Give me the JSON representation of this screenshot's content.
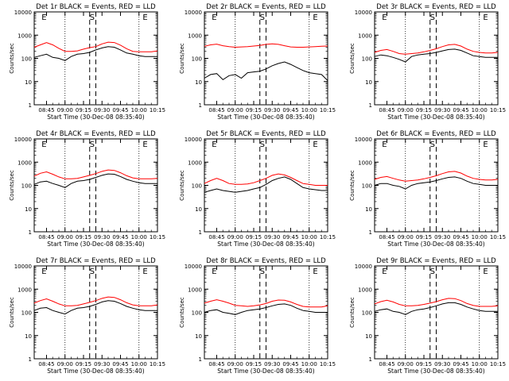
{
  "figure": {
    "xlabel": "Start Time (30-Dec-08 08:35:40)",
    "ylabel": "Counts/sec",
    "xticks": [
      "08:45",
      "09:00",
      "09:15",
      "09:30",
      "09:45",
      "10:00",
      "10:15"
    ],
    "yticks": [
      "1",
      "10",
      "100",
      "1000",
      "10000"
    ],
    "marker_labels": [
      "E",
      "S",
      "E"
    ]
  },
  "chart_data": [
    {
      "type": "line",
      "title": "Det 1r BLACK = Events, RED = LLD",
      "xlabel": "Start Time (30-Dec-08 08:35:40)",
      "ylabel": "Counts/sec",
      "yscale": "log",
      "ylim": [
        1,
        10000
      ],
      "xlim_minutes": [
        0,
        100
      ],
      "x": [
        0,
        5,
        10,
        15,
        20,
        25,
        30,
        35,
        40,
        45,
        50,
        55,
        60,
        65,
        70,
        75,
        80,
        85,
        90,
        95,
        100
      ],
      "series": [
        {
          "name": "Events",
          "color": "#000000",
          "values": [
            110,
            130,
            150,
            110,
            100,
            80,
            120,
            150,
            160,
            180,
            230,
            280,
            320,
            300,
            230,
            170,
            150,
            130,
            120,
            120,
            120
          ]
        },
        {
          "name": "LLD",
          "color": "#ff0000",
          "values": [
            300,
            380,
            480,
            380,
            270,
            200,
            200,
            210,
            250,
            290,
            320,
            420,
            500,
            480,
            370,
            260,
            200,
            190,
            190,
            190,
            210
          ]
        }
      ],
      "markers": [
        "E",
        "S",
        "E"
      ]
    },
    {
      "type": "line",
      "title": "Det 2r BLACK = Events, RED = LLD",
      "xlabel": "Start Time (30-Dec-08 08:35:40)",
      "ylabel": "Counts/sec",
      "yscale": "log",
      "ylim": [
        1,
        10000
      ],
      "xlim_minutes": [
        0,
        100
      ],
      "x": [
        0,
        5,
        10,
        15,
        20,
        25,
        30,
        35,
        40,
        45,
        50,
        55,
        60,
        65,
        70,
        75,
        80,
        85,
        90,
        95,
        100
      ],
      "series": [
        {
          "name": "Events",
          "color": "#000000",
          "values": [
            14,
            20,
            22,
            12,
            18,
            20,
            14,
            24,
            26,
            28,
            35,
            48,
            60,
            70,
            55,
            40,
            30,
            24,
            22,
            20,
            11
          ]
        },
        {
          "name": "LLD",
          "color": "#ff0000",
          "values": [
            330,
            380,
            410,
            350,
            320,
            300,
            310,
            320,
            340,
            360,
            400,
            420,
            400,
            350,
            310,
            300,
            300,
            310,
            320,
            330,
            340
          ]
        }
      ],
      "markers": [
        "E",
        "S",
        "E"
      ]
    },
    {
      "type": "line",
      "title": "Det 3r BLACK = Events, RED = LLD",
      "xlabel": "Start Time (30-Dec-08 08:35:40)",
      "ylabel": "Counts/sec",
      "yscale": "log",
      "ylim": [
        1,
        10000
      ],
      "xlim_minutes": [
        0,
        100
      ],
      "x": [
        0,
        5,
        10,
        15,
        20,
        25,
        30,
        35,
        40,
        45,
        50,
        55,
        60,
        65,
        70,
        75,
        80,
        85,
        90,
        95,
        100
      ],
      "series": [
        {
          "name": "Events",
          "color": "#000000",
          "values": [
            120,
            140,
            130,
            110,
            90,
            70,
            120,
            140,
            150,
            160,
            180,
            210,
            240,
            250,
            220,
            170,
            130,
            120,
            110,
            110,
            110
          ]
        },
        {
          "name": "LLD",
          "color": "#ff0000",
          "values": [
            180,
            220,
            240,
            200,
            160,
            150,
            160,
            170,
            190,
            220,
            260,
            320,
            380,
            400,
            340,
            250,
            200,
            180,
            170,
            170,
            180
          ]
        }
      ],
      "markers": [
        "E",
        "S",
        "E"
      ]
    },
    {
      "type": "line",
      "title": "Det 4r BLACK = Events, RED = LLD",
      "xlabel": "Start Time (30-Dec-08 08:35:40)",
      "ylabel": "Counts/sec",
      "yscale": "log",
      "ylim": [
        1,
        10000
      ],
      "xlim_minutes": [
        0,
        100
      ],
      "x": [
        0,
        5,
        10,
        15,
        20,
        25,
        30,
        35,
        40,
        45,
        50,
        55,
        60,
        65,
        70,
        75,
        80,
        85,
        90,
        95,
        100
      ],
      "series": [
        {
          "name": "Events",
          "color": "#000000",
          "values": [
            110,
            140,
            150,
            120,
            100,
            80,
            120,
            150,
            160,
            180,
            220,
            270,
            310,
            300,
            240,
            180,
            150,
            130,
            120,
            120,
            120
          ]
        },
        {
          "name": "LLD",
          "color": "#ff0000",
          "values": [
            250,
            330,
            380,
            300,
            230,
            190,
            190,
            200,
            230,
            270,
            320,
            400,
            460,
            440,
            350,
            260,
            210,
            190,
            190,
            190,
            200
          ]
        }
      ],
      "markers": [
        "E",
        "S",
        "E"
      ]
    },
    {
      "type": "line",
      "title": "Det 5r BLACK = Events, RED = LLD",
      "xlabel": "Start Time (30-Dec-08 08:35:40)",
      "ylabel": "Counts/sec",
      "yscale": "log",
      "ylim": [
        1,
        10000
      ],
      "xlim_minutes": [
        0,
        100
      ],
      "x": [
        0,
        5,
        10,
        15,
        20,
        25,
        30,
        35,
        40,
        45,
        50,
        55,
        60,
        65,
        70,
        75,
        80,
        85,
        90,
        95,
        100
      ],
      "series": [
        {
          "name": "Events",
          "color": "#000000",
          "values": [
            50,
            60,
            70,
            60,
            55,
            50,
            55,
            60,
            70,
            80,
            110,
            160,
            200,
            230,
            180,
            120,
            80,
            70,
            65,
            60,
            60
          ]
        },
        {
          "name": "LLD",
          "color": "#ff0000",
          "values": [
            120,
            160,
            200,
            160,
            120,
            110,
            110,
            115,
            130,
            160,
            200,
            270,
            310,
            280,
            220,
            160,
            120,
            110,
            100,
            100,
            100
          ]
        }
      ],
      "markers": [
        "E",
        "S",
        "E"
      ]
    },
    {
      "type": "line",
      "title": "Det 6r BLACK = Events, RED = LLD",
      "xlabel": "Start Time (30-Dec-08 08:35:40)",
      "ylabel": "Counts/sec",
      "yscale": "log",
      "ylim": [
        1,
        10000
      ],
      "xlim_minutes": [
        0,
        100
      ],
      "x": [
        0,
        5,
        10,
        15,
        20,
        25,
        30,
        35,
        40,
        45,
        50,
        55,
        60,
        65,
        70,
        75,
        80,
        85,
        90,
        95,
        100
      ],
      "series": [
        {
          "name": "Events",
          "color": "#000000",
          "values": [
            100,
            120,
            120,
            100,
            90,
            70,
            100,
            120,
            130,
            140,
            160,
            190,
            220,
            230,
            200,
            150,
            120,
            110,
            100,
            100,
            100
          ]
        },
        {
          "name": "LLD",
          "color": "#ff0000",
          "values": [
            180,
            220,
            240,
            200,
            170,
            150,
            160,
            170,
            190,
            220,
            260,
            320,
            380,
            400,
            340,
            250,
            200,
            180,
            170,
            170,
            180
          ]
        }
      ],
      "markers": [
        "E",
        "S",
        "E"
      ]
    },
    {
      "type": "line",
      "title": "Det 7r BLACK = Events, RED = LLD",
      "xlabel": "Start Time (30-Dec-08 08:35:40)",
      "ylabel": "Counts/sec",
      "yscale": "log",
      "ylim": [
        1,
        10000
      ],
      "xlim_minutes": [
        0,
        100
      ],
      "x": [
        0,
        5,
        10,
        15,
        20,
        25,
        30,
        35,
        40,
        45,
        50,
        55,
        60,
        65,
        70,
        75,
        80,
        85,
        90,
        95,
        100
      ],
      "series": [
        {
          "name": "Events",
          "color": "#000000",
          "values": [
            120,
            150,
            160,
            120,
            100,
            85,
            120,
            150,
            160,
            180,
            220,
            280,
            320,
            300,
            240,
            180,
            150,
            130,
            120,
            120,
            120
          ]
        },
        {
          "name": "LLD",
          "color": "#ff0000",
          "values": [
            250,
            320,
            380,
            300,
            230,
            190,
            190,
            200,
            230,
            270,
            320,
            400,
            460,
            440,
            350,
            260,
            210,
            190,
            190,
            190,
            210
          ]
        }
      ],
      "markers": [
        "E",
        "S",
        "E"
      ]
    },
    {
      "type": "line",
      "title": "Det 8r BLACK = Events, RED = LLD",
      "xlabel": "Start Time (30-Dec-08 08:35:40)",
      "ylabel": "Counts/sec",
      "yscale": "log",
      "ylim": [
        1,
        10000
      ],
      "xlim_minutes": [
        0,
        100
      ],
      "x": [
        0,
        5,
        10,
        15,
        20,
        25,
        30,
        35,
        40,
        45,
        50,
        55,
        60,
        65,
        70,
        75,
        80,
        85,
        90,
        95,
        100
      ],
      "series": [
        {
          "name": "Events",
          "color": "#000000",
          "values": [
            100,
            120,
            130,
            100,
            90,
            80,
            100,
            120,
            130,
            140,
            160,
            190,
            220,
            230,
            200,
            150,
            120,
            110,
            100,
            100,
            100
          ]
        },
        {
          "name": "LLD",
          "color": "#ff0000",
          "values": [
            250,
            300,
            350,
            300,
            250,
            200,
            190,
            180,
            190,
            210,
            240,
            300,
            340,
            330,
            280,
            220,
            180,
            170,
            170,
            170,
            190
          ]
        }
      ],
      "markers": [
        "E",
        "S",
        "E"
      ]
    },
    {
      "type": "line",
      "title": "Det 9r BLACK = Events, RED = LLD",
      "xlabel": "Start Time (30-Dec-08 08:35:40)",
      "ylabel": "Counts/sec",
      "yscale": "log",
      "ylim": [
        1,
        10000
      ],
      "xlim_minutes": [
        0,
        100
      ],
      "x": [
        0,
        5,
        10,
        15,
        20,
        25,
        30,
        35,
        40,
        45,
        50,
        55,
        60,
        65,
        70,
        75,
        80,
        85,
        90,
        95,
        100
      ],
      "series": [
        {
          "name": "Events",
          "color": "#000000",
          "values": [
            110,
            130,
            140,
            110,
            100,
            80,
            110,
            130,
            140,
            160,
            190,
            230,
            260,
            260,
            220,
            170,
            140,
            120,
            110,
            110,
            110
          ]
        },
        {
          "name": "LLD",
          "color": "#ff0000",
          "values": [
            230,
            290,
            330,
            280,
            220,
            190,
            190,
            200,
            220,
            250,
            290,
            350,
            400,
            390,
            320,
            240,
            200,
            180,
            180,
            180,
            190
          ]
        }
      ],
      "markers": [
        "E",
        "S",
        "E"
      ]
    }
  ]
}
